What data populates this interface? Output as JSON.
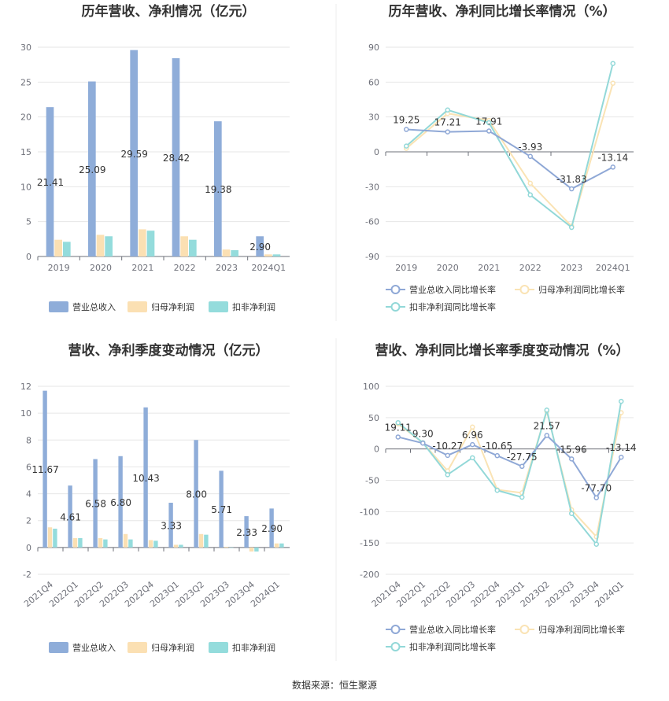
{
  "source_text": "数据来源：恒生聚源",
  "colors": {
    "revenue": "#8fadd9",
    "net_profit": "#fbe0b3",
    "deducted_profit": "#94dcdc",
    "revenue_line": "#8fa8d6",
    "net_profit_line": "#fae3b4",
    "deducted_line": "#92d8d8",
    "grid": "#e6e6e6",
    "axis": "#6e7079"
  },
  "chart_data": [
    {
      "type": "bar",
      "title": "历年营收、净利情况（亿元）",
      "categories": [
        "2019",
        "2020",
        "2021",
        "2022",
        "2023",
        "2024Q1"
      ],
      "ylim": [
        0,
        30
      ],
      "yticks": [
        0,
        5,
        10,
        15,
        20,
        25,
        30
      ],
      "series": [
        {
          "name": "营业总收入",
          "values": [
            21.41,
            25.09,
            29.59,
            28.42,
            19.38,
            2.9
          ]
        },
        {
          "name": "归母净利润",
          "values": [
            2.4,
            3.1,
            3.9,
            2.9,
            1.0,
            0.3
          ]
        },
        {
          "name": "扣非净利润",
          "values": [
            2.1,
            2.9,
            3.7,
            2.4,
            0.9,
            0.3
          ]
        }
      ],
      "data_labels": [
        "21.41",
        "25.09",
        "29.59",
        "28.42",
        "19.38",
        "2.90"
      ],
      "legend": "bottom"
    },
    {
      "type": "line",
      "title": "历年营收、净利同比增长率情况（%）",
      "categories": [
        "2019",
        "2020",
        "2021",
        "2022",
        "2023",
        "2024Q1"
      ],
      "ylim": [
        -90,
        90
      ],
      "yticks": [
        -90,
        -60,
        -30,
        0,
        30,
        60,
        90
      ],
      "series": [
        {
          "name": "营业总收入同比增长率",
          "values": [
            19.25,
            17.21,
            17.91,
            -3.93,
            -31.83,
            -13.14
          ]
        },
        {
          "name": "归母净利润同比增长率",
          "values": [
            3,
            33,
            27,
            -27,
            -64,
            59
          ]
        },
        {
          "name": "扣非净利润同比增长率",
          "values": [
            5,
            36,
            25,
            -37,
            -65,
            76
          ]
        }
      ],
      "data_labels": [
        "19.25",
        "17.21",
        "17.91",
        "-3.93",
        "-31.83",
        "-13.14"
      ],
      "legend": "bottom"
    },
    {
      "type": "bar",
      "title": "营收、净利季度变动情况（亿元）",
      "categories": [
        "2021Q4",
        "2022Q1",
        "2022Q2",
        "2022Q3",
        "2022Q4",
        "2023Q1",
        "2023Q2",
        "2023Q3",
        "2023Q4",
        "2024Q1"
      ],
      "ylim": [
        -2,
        12
      ],
      "yticks": [
        -2,
        0,
        2,
        4,
        6,
        8,
        10,
        12
      ],
      "series": [
        {
          "name": "营业总收入",
          "values": [
            11.67,
            4.61,
            6.58,
            6.8,
            10.43,
            3.33,
            8.0,
            5.71,
            2.33,
            2.9
          ]
        },
        {
          "name": "归母净利润",
          "values": [
            1.5,
            0.7,
            0.7,
            1.0,
            0.55,
            0.2,
            1.0,
            0.05,
            -0.3,
            0.3
          ]
        },
        {
          "name": "扣非净利润",
          "values": [
            1.4,
            0.7,
            0.6,
            0.6,
            0.5,
            0.2,
            0.95,
            0.0,
            -0.3,
            0.3
          ]
        }
      ],
      "data_labels": [
        "11.67",
        "4.61",
        "6.58",
        "6.80",
        "10.43",
        "3.33",
        "8.00",
        "5.71",
        "2.33",
        "2.90"
      ],
      "legend": "bottom"
    },
    {
      "type": "line",
      "title": "营收、净利同比增长率季度变动情况（%）",
      "categories": [
        "2021Q4",
        "2022Q1",
        "2022Q2",
        "2022Q3",
        "2022Q4",
        "2023Q1",
        "2023Q2",
        "2023Q3",
        "2023Q4",
        "2024Q1"
      ],
      "ylim": [
        -200,
        100
      ],
      "yticks": [
        -200,
        -150,
        -100,
        -50,
        0,
        50,
        100
      ],
      "series": [
        {
          "name": "营业总收入同比增长率",
          "values": [
            19.11,
            9.3,
            -10.27,
            6.96,
            -10.65,
            -27.75,
            21.57,
            -15.96,
            -77.7,
            -13.14
          ]
        },
        {
          "name": "归母净利润同比增长率",
          "values": [
            40,
            10,
            -35,
            35,
            -65,
            -70,
            60,
            -97,
            -140,
            58
          ]
        },
        {
          "name": "扣非净利润同比增长率",
          "values": [
            42,
            10,
            -41,
            -14,
            -66,
            -77,
            62,
            -103,
            -152,
            76
          ]
        }
      ],
      "data_labels": [
        "19.11",
        "9.30",
        "-10.27",
        "6.96",
        "-10.65",
        "-27.75",
        "21.57",
        "-15.96",
        "-77.70",
        "-13.14"
      ],
      "legend": "bottom"
    }
  ]
}
